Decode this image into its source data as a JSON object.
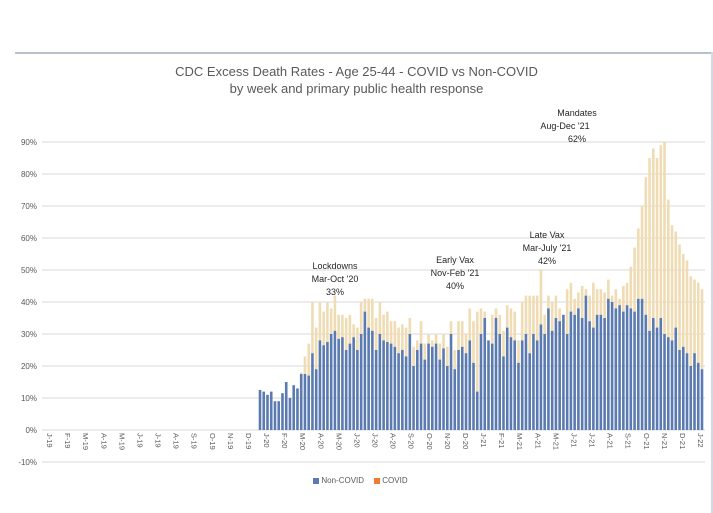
{
  "chart_data": {
    "type": "bar",
    "stacked": true,
    "title": "CDC Excess Death Rates - Age 25-44 - COVID vs Non-COVID",
    "subtitle": "by week and primary public health response",
    "xlabel": "",
    "ylabel": "",
    "ylim": [
      -0.1,
      0.9
    ],
    "yticks": [
      -0.1,
      0.0,
      0.1,
      0.2,
      0.3,
      0.4,
      0.5,
      0.6,
      0.7,
      0.8,
      0.9
    ],
    "ytick_labels": [
      "-10%",
      "0%",
      "10%",
      "20%",
      "30%",
      "40%",
      "50%",
      "60%",
      "70%",
      "80%",
      "90%"
    ],
    "grid": true,
    "legend_position": "bottom",
    "x_month_labels": [
      "J-19",
      "F-19",
      "M-19",
      "A-19",
      "M-19",
      "J-19",
      "J-19",
      "A-19",
      "S-19",
      "O-19",
      "N-19",
      "D-19",
      "J-20",
      "F-20",
      "M-20",
      "A-20",
      "M-20",
      "J-20",
      "J-20",
      "A-20",
      "S-20",
      "O-20",
      "N-20",
      "D-20",
      "J-21",
      "F-21",
      "M-21",
      "A-21",
      "M-21",
      "J-21",
      "J-21",
      "A-21",
      "S-21",
      "O-21",
      "N-21",
      "D-21",
      "J-22"
    ],
    "weeks_before_data": 52,
    "series": [
      {
        "name": "Non-COVID",
        "color": "#5b7bb0",
        "values": [
          0.125,
          0.12,
          0.11,
          0.12,
          0.09,
          0.09,
          0.115,
          0.15,
          0.1,
          0.14,
          0.13,
          0.175,
          0.175,
          0.17,
          0.24,
          0.19,
          0.28,
          0.265,
          0.275,
          0.3,
          0.31,
          0.285,
          0.29,
          0.25,
          0.27,
          0.29,
          0.25,
          0.3,
          0.37,
          0.32,
          0.31,
          0.25,
          0.3,
          0.28,
          0.275,
          0.27,
          0.26,
          0.24,
          0.25,
          0.23,
          0.3,
          0.2,
          0.25,
          0.27,
          0.22,
          0.27,
          0.26,
          0.27,
          0.22,
          0.255,
          0.2,
          0.3,
          0.19,
          0.25,
          0.26,
          0.24,
          0.28,
          0.21,
          0.12,
          0.3,
          0.35,
          0.28,
          0.27,
          0.35,
          0.3,
          0.23,
          0.32,
          0.29,
          0.28,
          0.21,
          0.28,
          0.3,
          0.24,
          0.3,
          0.28,
          0.33,
          0.3,
          0.38,
          0.31,
          0.35,
          0.34,
          0.36,
          0.3,
          0.37,
          0.36,
          0.38,
          0.35,
          0.42,
          0.34,
          0.32,
          0.36,
          0.36,
          0.35,
          0.41,
          0.4,
          0.38,
          0.39,
          0.37,
          0.39,
          0.38,
          0.37,
          0.41,
          0.41,
          0.36,
          0.31,
          0.35,
          0.32,
          0.35,
          0.3,
          0.29,
          0.28,
          0.32,
          0.25,
          0.26,
          0.24,
          0.2,
          0.24,
          0.21,
          0.19
        ],
        "covid_values_note": "COVID portion = total - Non-COVID"
      },
      {
        "name": "COVID",
        "color": "#f0dcb4",
        "totals": [
          0.125,
          0.12,
          0.11,
          0.12,
          0.09,
          0.09,
          0.115,
          0.15,
          0.1,
          0.14,
          0.13,
          0.18,
          0.23,
          0.27,
          0.4,
          0.32,
          0.4,
          0.37,
          0.4,
          0.38,
          0.42,
          0.36,
          0.36,
          0.35,
          0.36,
          0.33,
          0.32,
          0.4,
          0.41,
          0.41,
          0.41,
          0.35,
          0.4,
          0.36,
          0.37,
          0.34,
          0.34,
          0.32,
          0.33,
          0.32,
          0.35,
          0.26,
          0.28,
          0.34,
          0.27,
          0.3,
          0.28,
          0.3,
          0.27,
          0.3,
          0.26,
          0.34,
          0.25,
          0.34,
          0.34,
          0.3,
          0.38,
          0.34,
          0.37,
          0.38,
          0.37,
          0.27,
          0.36,
          0.38,
          0.36,
          0.31,
          0.39,
          0.38,
          0.37,
          0.28,
          0.4,
          0.42,
          0.42,
          0.42,
          0.42,
          0.5,
          0.36,
          0.42,
          0.4,
          0.42,
          0.38,
          0.36,
          0.44,
          0.46,
          0.41,
          0.43,
          0.45,
          0.44,
          0.42,
          0.46,
          0.44,
          0.44,
          0.43,
          0.47,
          0.42,
          0.44,
          0.41,
          0.45,
          0.46,
          0.51,
          0.57,
          0.63,
          0.7,
          0.79,
          0.85,
          0.88,
          0.85,
          0.89,
          0.9,
          0.72,
          0.64,
          0.62,
          0.58,
          0.55,
          0.53,
          0.48,
          0.47,
          0.46,
          0.44
        ]
      }
    ],
    "annotations": [
      {
        "lines": [
          "Lockdowns",
          "Mar-Oct '20",
          "33%"
        ],
        "month_anchor": "J-20"
      },
      {
        "lines": [
          "Early Vax",
          "Nov-Feb '21",
          "40%"
        ],
        "month_anchor": "D-20"
      },
      {
        "lines": [
          "Late Vax",
          "Mar-July '21",
          "42%"
        ],
        "month_anchor": "J-21"
      },
      {
        "lines": [
          "Mandates",
          "Aug-Dec '21",
          "62%"
        ],
        "month_anchor": "S-21"
      }
    ]
  },
  "legend": {
    "noncovid": "Non-COVID",
    "covid": "COVID"
  }
}
